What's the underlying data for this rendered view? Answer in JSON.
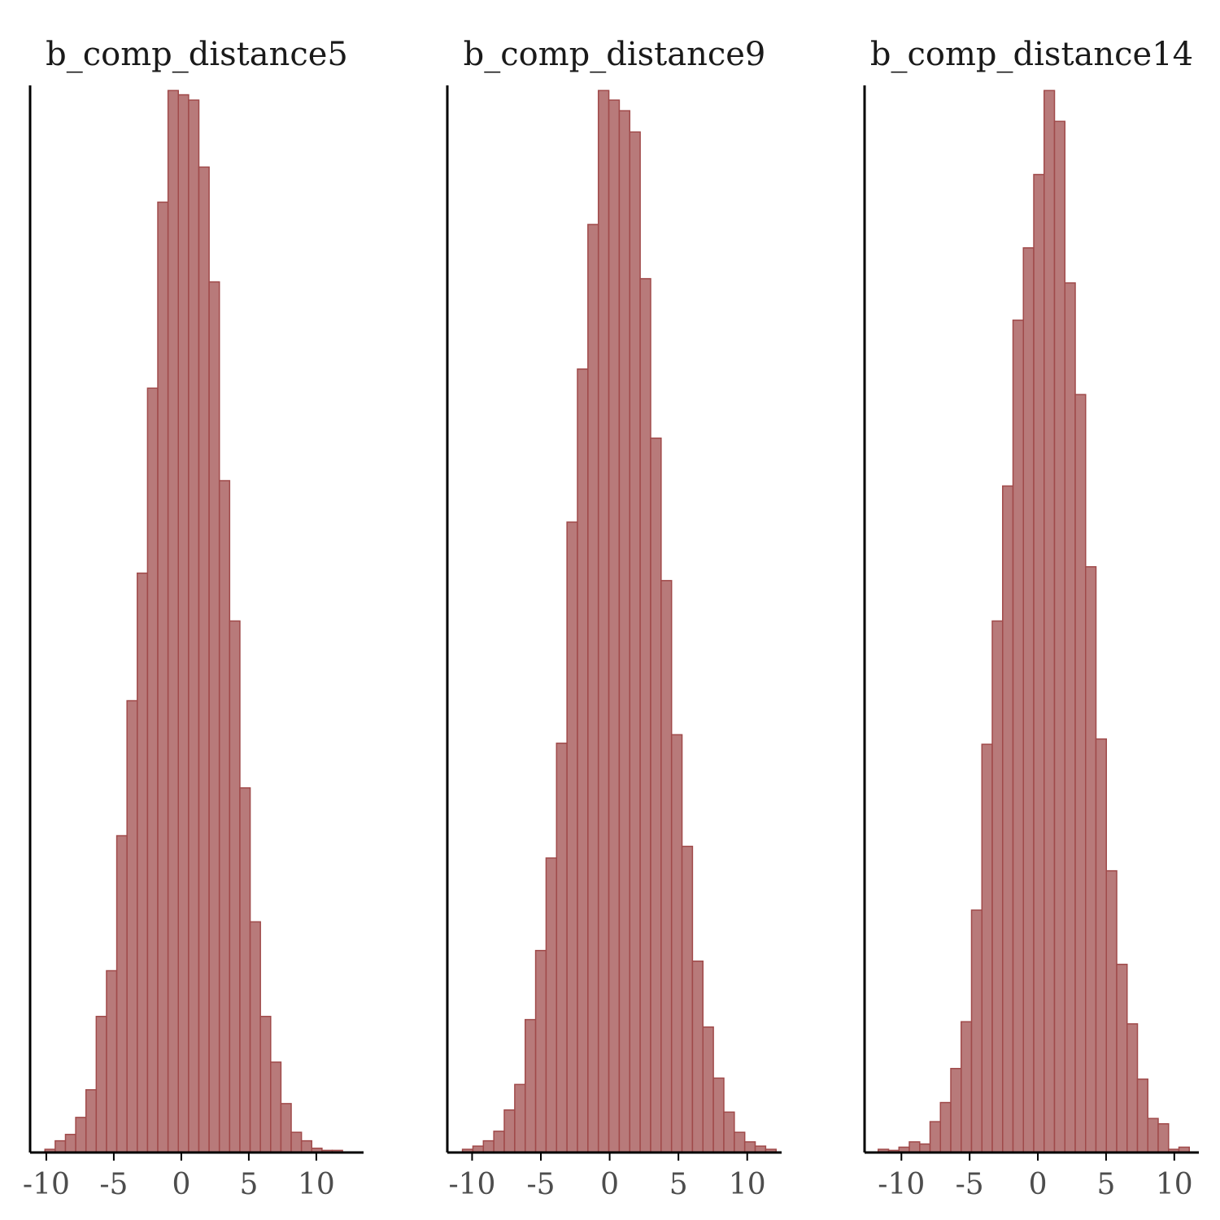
{
  "chart_data": [
    {
      "type": "bar",
      "title": "b_comp_distance5",
      "xlabel": "",
      "ylabel": "",
      "xlim": [
        -11.2,
        13.5
      ],
      "ylim": [
        0,
        1.0
      ],
      "xticks": [
        -10,
        -5,
        0,
        5,
        10
      ],
      "xtick_labels": [
        "-10",
        "-5",
        "0",
        "5",
        "10"
      ],
      "bin_start": -10.1,
      "bin_width": 0.76,
      "values": [
        0.003,
        0.011,
        0.017,
        0.033,
        0.059,
        0.128,
        0.171,
        0.298,
        0.425,
        0.545,
        0.719,
        0.894,
        0.999,
        0.995,
        0.99,
        0.927,
        0.819,
        0.632,
        0.5,
        0.343,
        0.217,
        0.128,
        0.085,
        0.046,
        0.019,
        0.011,
        0.004,
        0.002,
        0.002
      ]
    },
    {
      "type": "bar",
      "title": "b_comp_distance9",
      "xlabel": "",
      "ylabel": "",
      "xlim": [
        -11.8,
        12.5
      ],
      "ylim": [
        0,
        1.0
      ],
      "xticks": [
        -10,
        -5,
        0,
        5,
        10
      ],
      "xtick_labels": [
        "-10",
        "-5",
        "0",
        "5",
        "10"
      ],
      "bin_start": -10.7,
      "bin_width": 0.76,
      "values": [
        0.003,
        0.006,
        0.011,
        0.02,
        0.04,
        0.064,
        0.125,
        0.19,
        0.277,
        0.385,
        0.593,
        0.737,
        0.873,
        0.999,
        0.99,
        0.98,
        0.96,
        0.822,
        0.672,
        0.538,
        0.393,
        0.288,
        0.18,
        0.118,
        0.07,
        0.038,
        0.019,
        0.01,
        0.006,
        0.003
      ]
    },
    {
      "type": "bar",
      "title": "b_comp_distance14",
      "xlabel": "",
      "ylabel": "",
      "xlim": [
        -12.7,
        11.8
      ],
      "ylim": [
        0,
        1.0
      ],
      "xticks": [
        -10,
        -5,
        0,
        5,
        10
      ],
      "xtick_labels": [
        "-10",
        "-5",
        "0",
        "5",
        "10"
      ],
      "bin_start": -11.7,
      "bin_width": 0.76,
      "values": [
        0.003,
        0.002,
        0.005,
        0.01,
        0.008,
        0.029,
        0.047,
        0.079,
        0.123,
        0.228,
        0.384,
        0.5,
        0.627,
        0.783,
        0.851,
        0.92,
        0.999,
        0.97,
        0.818,
        0.713,
        0.551,
        0.389,
        0.265,
        0.177,
        0.121,
        0.069,
        0.032,
        0.027,
        0.003,
        0.005
      ]
    }
  ],
  "colors": {
    "bar_fill": "#b87a7a",
    "bar_edge": "#a04a4a",
    "axis": "#000000",
    "title_text": "#1a1a1a",
    "tick_text": "#4d4d4d"
  }
}
